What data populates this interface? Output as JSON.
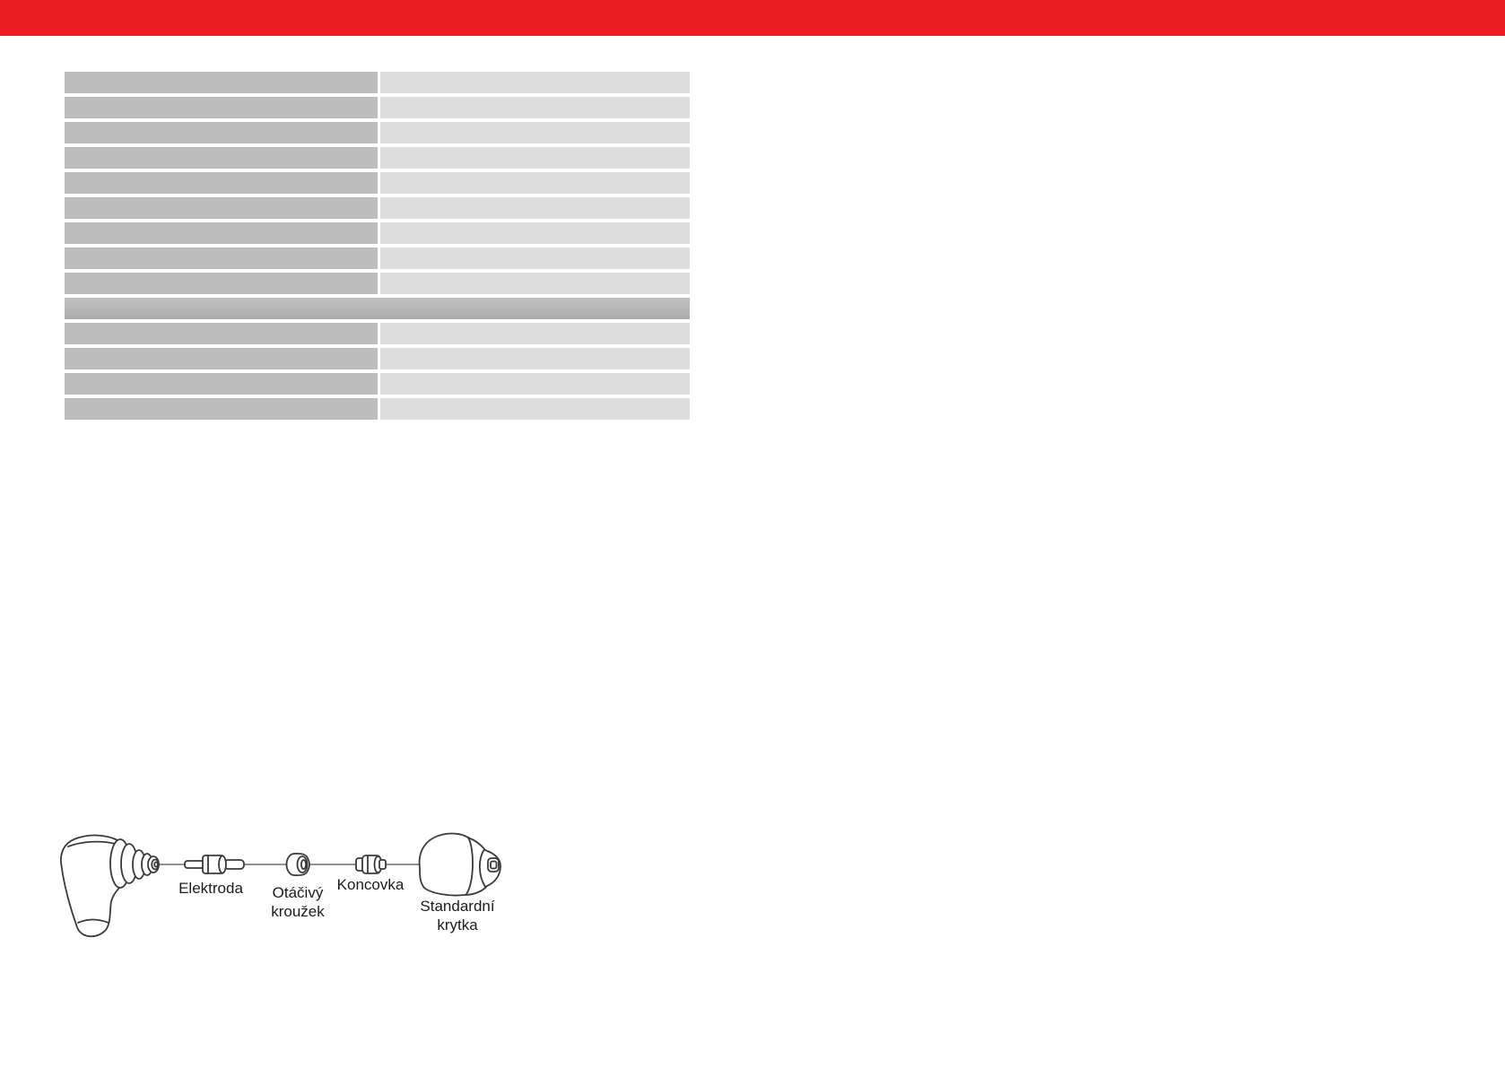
{
  "banner": {
    "color": "#ED1C24"
  },
  "table": {
    "colors": {
      "left_cell": "#bcbcbc",
      "right_cell": "#dddddd",
      "section_row": "#b4b4b4"
    },
    "rows": [
      {
        "type": "data",
        "left": "",
        "right": ""
      },
      {
        "type": "data",
        "left": "",
        "right": ""
      },
      {
        "type": "data",
        "left": "",
        "right": ""
      },
      {
        "type": "data",
        "left": "",
        "right": ""
      },
      {
        "type": "data",
        "left": "",
        "right": ""
      },
      {
        "type": "data",
        "left": "",
        "right": ""
      },
      {
        "type": "data",
        "left": "",
        "right": ""
      },
      {
        "type": "data",
        "left": "",
        "right": ""
      },
      {
        "type": "data",
        "left": "",
        "right": ""
      },
      {
        "type": "section",
        "label": ""
      },
      {
        "type": "data",
        "left": "",
        "right": ""
      },
      {
        "type": "data",
        "left": "",
        "right": ""
      },
      {
        "type": "data",
        "left": "",
        "right": ""
      },
      {
        "type": "data",
        "left": "",
        "right": ""
      }
    ]
  },
  "diagram": {
    "labels": {
      "electrode": "Elektroda",
      "swirl_ring_line1": "Otáčivý",
      "swirl_ring_line2": "kroužek",
      "tip": "Koncovka",
      "cap_line1": "Standardní",
      "cap_line2": "krytka"
    }
  }
}
